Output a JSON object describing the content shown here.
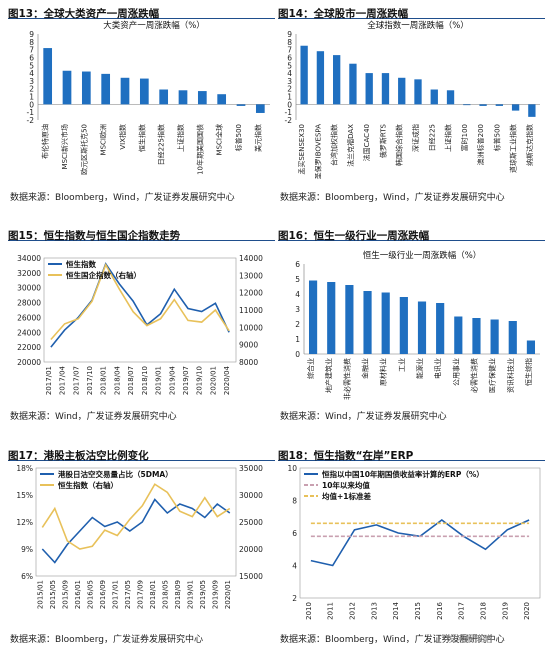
{
  "panels": [
    {
      "title": "图13：全球大类资产一周涨跌幅",
      "source": "数据来源：Bloomberg，Wind，广发证券发展研究中心",
      "chart_data": {
        "type": "bar",
        "title": "大类资产一周涨跌幅（%）",
        "categories": [
          "布伦特原油",
          "MSCI新兴市场",
          "欧元区斯托克50",
          "MSCI欧洲",
          "VIX指数",
          "恒生指数",
          "日经225指数",
          "上证指数",
          "10年期美国国债",
          "MSCI全球",
          "标普500",
          "美元指数"
        ],
        "values": [
          7.2,
          4.3,
          4.2,
          3.9,
          3.4,
          3.3,
          1.9,
          1.8,
          1.7,
          1.3,
          -0.2,
          -1.1
        ],
        "ylim": [
          -2,
          9
        ],
        "yticks": [
          -2,
          -1,
          0,
          1,
          2,
          3,
          4,
          5,
          6,
          7,
          8,
          9
        ],
        "color": "#1f6fc0"
      }
    },
    {
      "title": "图14：全球股市一周涨跌幅",
      "source": "数据来源：Bloomberg，Wind，广发证券发展研究中心",
      "chart_data": {
        "type": "bar",
        "title": "全球指数一周涨跌幅（%）",
        "categories": [
          "孟买SENSEX30",
          "圣保罗IBOVESPA",
          "台湾加权指数",
          "法兰克福DAX",
          "法国CAC40",
          "俄罗斯RTS",
          "韩国综合指数",
          "深证成指",
          "日经225",
          "上证指数",
          "富时100",
          "澳洲标普200",
          "标普500",
          "道琼斯工业指数",
          "纳斯达克指数"
        ],
        "values": [
          7.5,
          6.8,
          6.3,
          5.2,
          4.0,
          4.0,
          3.4,
          3.2,
          1.9,
          1.8,
          -0.1,
          -0.2,
          -0.2,
          -0.8,
          -1.6
        ],
        "ylim": [
          -2,
          9
        ],
        "yticks": [
          -2,
          -1,
          0,
          1,
          2,
          3,
          4,
          5,
          6,
          7,
          8,
          9
        ],
        "color": "#1f6fc0"
      }
    },
    {
      "title": "图15：恒生指数与恒生国企指数走势",
      "source": "数据来源：Wind，广发证券发展研究中心",
      "chart_data": {
        "type": "line",
        "x": [
          "2017/01",
          "2017/04",
          "2017/07",
          "2017/10",
          "2018/01",
          "2018/04",
          "2018/07",
          "2018/10",
          "2019/01",
          "2019/04",
          "2019/07",
          "2019/10",
          "2020/01",
          "2020/04"
        ],
        "series": [
          {
            "name": "恒生指数",
            "axis": "left",
            "color": "#1f5fae",
            "values": [
              22000,
              24300,
              26000,
              28300,
              33200,
              30500,
              28200,
              25000,
              26500,
              29800,
              27200,
              26800,
              27900,
              24000
            ]
          },
          {
            "name": "恒生国企指数（右轴）",
            "axis": "right",
            "color": "#e8c15a",
            "values": [
              9300,
              10200,
              10500,
              11500,
              13600,
              12200,
              10900,
              10100,
              10500,
              11600,
              10400,
              10300,
              11000,
              9800
            ]
          }
        ],
        "ylim_left": [
          20000,
          34000
        ],
        "yticks_left": [
          20000,
          22000,
          24000,
          26000,
          28000,
          30000,
          32000,
          34000
        ],
        "ylim_right": [
          8000,
          14000
        ],
        "yticks_right": [
          8000,
          9000,
          10000,
          11000,
          12000,
          13000,
          14000
        ]
      }
    },
    {
      "title": "图16：恒生一级行业一周涨跌幅",
      "source": "数据来源：Wind，广发证券发展研究中心",
      "chart_data": {
        "type": "bar",
        "title": "恒生一级行业一周涨跌幅（%）",
        "categories": [
          "综合业",
          "地产建筑业",
          "非必需性消费",
          "金融业",
          "原材料业",
          "工业",
          "能源业",
          "电讯业",
          "公用事业",
          "必需性消费",
          "医疗保健业",
          "资讯科技业",
          "恒生综指"
        ],
        "values": [
          4.9,
          4.8,
          4.6,
          4.2,
          4.1,
          3.8,
          3.5,
          3.4,
          2.5,
          2.4,
          2.3,
          2.2,
          0.9
        ],
        "ylim": [
          0,
          6
        ],
        "yticks": [
          0,
          1,
          2,
          3,
          4,
          5,
          6
        ],
        "color": "#1f6fc0"
      }
    },
    {
      "title": "图17：港股主板沽空比例变化",
      "source": "数据来源：Bloomberg，广发证券发展研究中心",
      "chart_data": {
        "type": "line",
        "x": [
          "2015/01",
          "2015/05",
          "2015/09",
          "2016/01",
          "2016/05",
          "2016/09",
          "2017/01",
          "2017/05",
          "2017/09",
          "2018/01",
          "2018/05",
          "2018/09",
          "2019/01",
          "2019/05",
          "2019/09",
          "2020/01"
        ],
        "series": [
          {
            "name": "港股日沽空交易量占比（5DMA）",
            "axis": "left",
            "color": "#1f5fae",
            "values": [
              9.0,
              7.5,
              9.5,
              11.0,
              12.5,
              11.5,
              12.0,
              11.0,
              12.0,
              14.5,
              13.0,
              14.0,
              13.5,
              12.5,
              14.0,
              13.0
            ]
          },
          {
            "name": "恒生指数（右轴）",
            "axis": "right",
            "color": "#e8c15a",
            "values": [
              24000,
              27500,
              21500,
              20000,
              20500,
              23500,
              22500,
              25500,
              28000,
              32000,
              30500,
              27000,
              26000,
              29500,
              26000,
              27500
            ]
          }
        ],
        "ylim_left": [
          6,
          18
        ],
        "yticks_left": [
          "6%",
          "9%",
          "12%",
          "15%",
          "18%"
        ],
        "ylim_right": [
          15000,
          35000
        ],
        "yticks_right": [
          15000,
          20000,
          25000,
          30000,
          35000
        ]
      }
    },
    {
      "title": "图18：恒生指数“在岸”ERP",
      "source": "数据来源：Bloomberg，Wind，广发证券发展研究中心",
      "watermark": "广发港股策略",
      "chart_data": {
        "type": "line",
        "x": [
          "2010",
          "2011",
          "2012",
          "2013",
          "2014",
          "2015",
          "2016",
          "2017",
          "2018",
          "2019",
          "2020"
        ],
        "series": [
          {
            "name": "恒指以中国10年期国债收益率计算的ERP（%）",
            "color": "#1f5fae",
            "values": [
              4.3,
              4.0,
              6.2,
              6.5,
              6.0,
              5.8,
              6.8,
              5.8,
              5.0,
              6.2,
              6.8
            ]
          },
          {
            "name": "10年以来均值",
            "color": "#c9a0b0",
            "dash": true,
            "values": [
              5.8,
              5.8,
              5.8,
              5.8,
              5.8,
              5.8,
              5.8,
              5.8,
              5.8,
              5.8,
              5.8
            ]
          },
          {
            "name": "均值+1标准差",
            "color": "#e8c15a",
            "dash": true,
            "values": [
              6.6,
              6.6,
              6.6,
              6.6,
              6.6,
              6.6,
              6.6,
              6.6,
              6.6,
              6.6,
              6.6
            ]
          }
        ],
        "ylim": [
          2,
          10
        ],
        "yticks": [
          2,
          4,
          6,
          8,
          10
        ]
      }
    }
  ]
}
